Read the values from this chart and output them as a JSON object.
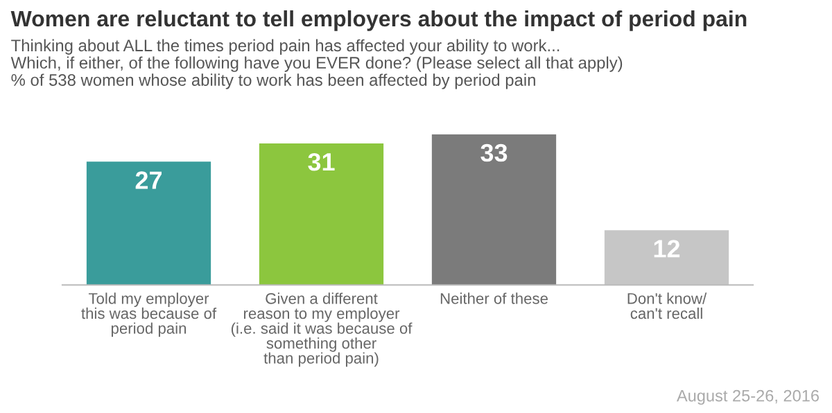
{
  "chart_data": {
    "type": "bar",
    "title": "Women are reluctant to tell employers about the impact of period pain",
    "subtitle": "Thinking about ALL the times period pain has affected your ability to work...\nWhich, if either, of the following have you EVER done? (Please select all that apply)\n% of 538 women whose ability to work has been affected by period pain",
    "categories": [
      "Told my employer\nthis was because of\nperiod pain",
      "Given a different\nreason to my employer\n(i.e. said it was because of\nsomething other\nthan period pain)",
      "Neither of these",
      "Don't know/\ncan't recall"
    ],
    "values": [
      27,
      31,
      33,
      12
    ],
    "colors": [
      "#3a9c9b",
      "#8cc63e",
      "#7b7b7b",
      "#c6c6c6"
    ],
    "data_labels": true,
    "grid": false,
    "legend": false,
    "annotations": [
      "August 25-26, 2016"
    ]
  }
}
